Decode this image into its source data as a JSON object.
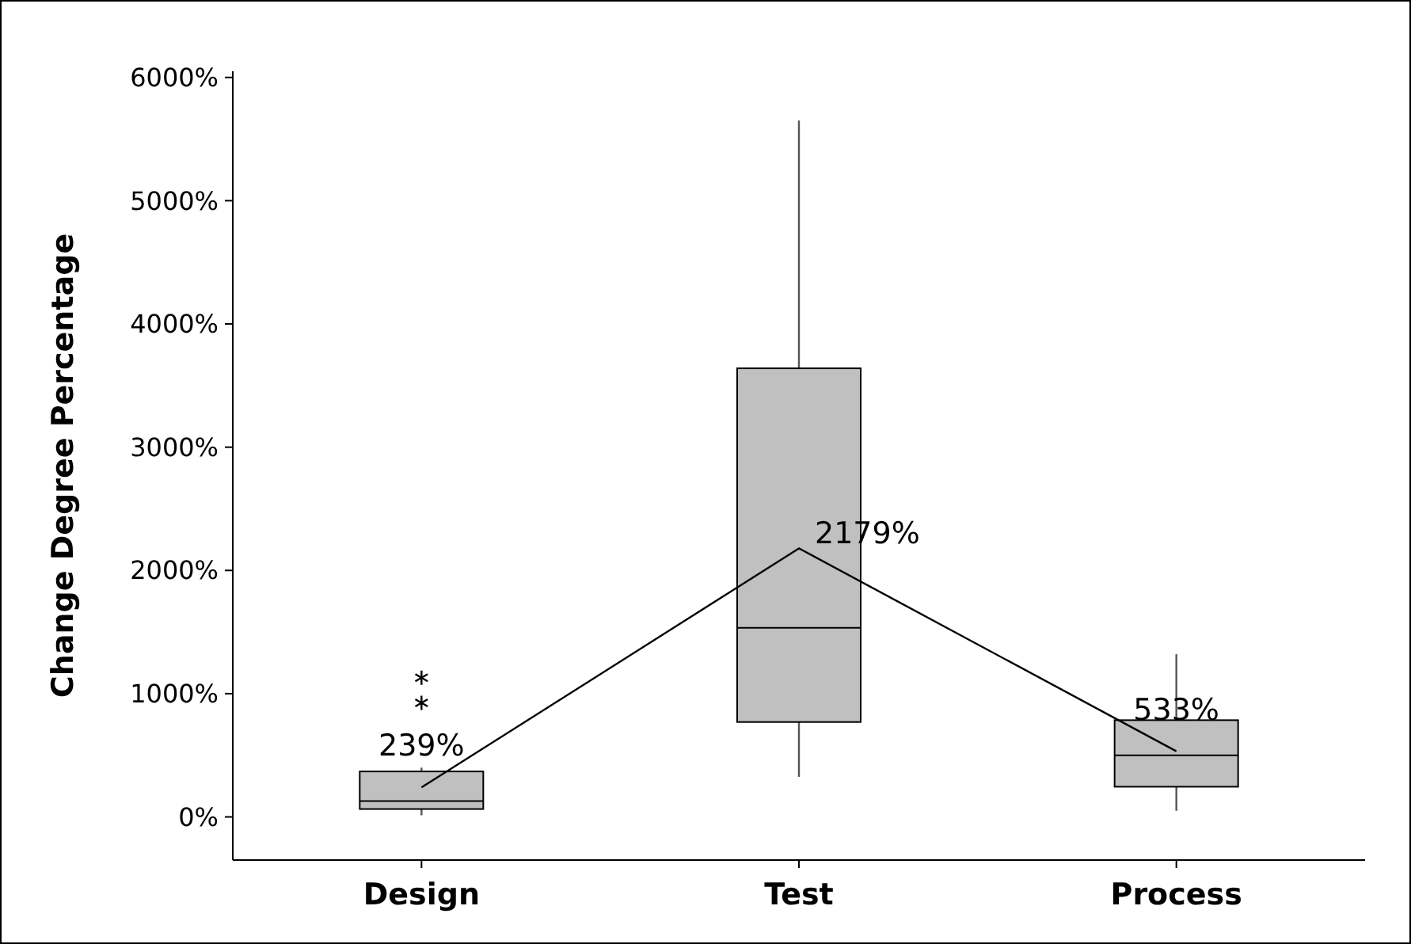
{
  "chart_data": {
    "type": "box",
    "ylabel": "Change Degree Percentage",
    "categories": [
      "Design",
      "Test",
      "Process"
    ],
    "ylim": [
      -350,
      6050
    ],
    "yticks": [
      {
        "value": 0,
        "label": "0%"
      },
      {
        "value": 1000,
        "label": "1000%"
      },
      {
        "value": 2000,
        "label": "2000%"
      },
      {
        "value": 3000,
        "label": "3000%"
      },
      {
        "value": 4000,
        "label": "4000%"
      },
      {
        "value": 5000,
        "label": "5000%"
      },
      {
        "value": 6000,
        "label": "6000%"
      }
    ],
    "series": [
      {
        "color": "#c0c0c0",
        "boxes": [
          {
            "low": 13,
            "q1": 64,
            "median": 128,
            "q3": 369,
            "high": 400,
            "outliers": [
              925,
              1130
            ]
          },
          {
            "low": 325,
            "q1": 770,
            "median": 1535,
            "q3": 3640,
            "high": 5650
          },
          {
            "low": 50,
            "q1": 245,
            "median": 500,
            "q3": 785,
            "high": 1320
          }
        ]
      },
      {
        "type": "line",
        "color": "#000000",
        "values": [
          239,
          2179,
          533
        ],
        "value_labels": [
          "239%",
          "2179%",
          "533%"
        ]
      }
    ],
    "grid": false,
    "marker": "none"
  }
}
